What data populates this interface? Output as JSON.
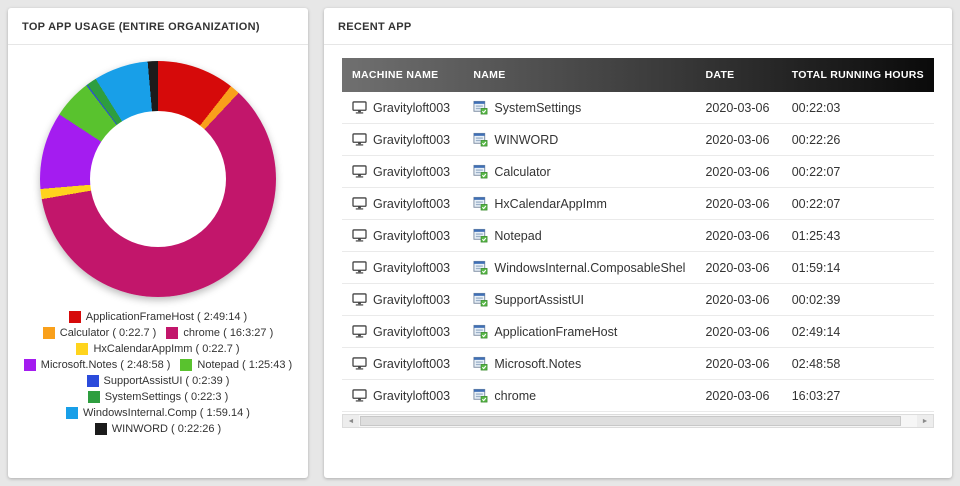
{
  "left_panel": {
    "title": "TOP APP USAGE (ENTIRE ORGANIZATION)"
  },
  "chart_data": {
    "type": "pie",
    "donut": true,
    "title": "TOP APP USAGE (ENTIRE ORGANIZATION)",
    "legend_position": "bottom",
    "start_angle_deg": 0,
    "slices": [
      {
        "label": "ApplicationFrameHost",
        "legend_text": "ApplicationFrameHost ( 2:49:14 )",
        "duration": "2:49:14",
        "hours": 2.8206,
        "color": "#d60a0a"
      },
      {
        "label": "Calculator",
        "legend_text": "Calculator ( 0:22.7 )",
        "duration": "0:22.7",
        "hours": 0.3686,
        "color": "#f9a01b"
      },
      {
        "label": "chrome",
        "legend_text": "chrome ( 16:3:27 )",
        "duration": "16:3:27",
        "hours": 16.0575,
        "color": "#c2166b"
      },
      {
        "label": "HxCalendarAppImm",
        "legend_text": "HxCalendarAppImm ( 0:22.7 )",
        "duration": "0:22.7",
        "hours": 0.3686,
        "color": "#ffd41d"
      },
      {
        "label": "Microsoft.Notes",
        "legend_text": "Microsoft.Notes ( 2:48:58 )",
        "duration": "2:48:58",
        "hours": 2.8161,
        "color": "#a41cf0"
      },
      {
        "label": "Notepad",
        "legend_text": "Notepad ( 1:25:43 )",
        "duration": "1:25:43",
        "hours": 1.4286,
        "color": "#59c22e"
      },
      {
        "label": "SupportAssistUI",
        "legend_text": "SupportAssistUI ( 0:2:39 )",
        "duration": "0:2:39",
        "hours": 0.0442,
        "color": "#2b4bdb"
      },
      {
        "label": "SystemSettings",
        "legend_text": "SystemSettings ( 0:22:3 )",
        "duration": "0:22:3",
        "hours": 0.3675,
        "color": "#2e9e3f"
      },
      {
        "label": "WindowsInternal.Comp",
        "legend_text": "WindowsInternal.Comp ( 1:59.14 )",
        "duration": "1:59.14",
        "hours": 1.9872,
        "color": "#189fe8"
      },
      {
        "label": "WINWORD",
        "legend_text": "WINWORD ( 0:22:26 )",
        "duration": "0:22:26",
        "hours": 0.3739,
        "color": "#1b1b1b"
      }
    ]
  },
  "right_panel": {
    "title": "RECENT APP",
    "table": {
      "columns": [
        "MACHINE NAME",
        "NAME",
        "DATE",
        "TOTAL RUNNING HOURS"
      ],
      "rows": [
        {
          "machine": "Gravityloft003",
          "name": "SystemSettings",
          "date": "2020-03-06",
          "hours": "00:22:03"
        },
        {
          "machine": "Gravityloft003",
          "name": "WINWORD",
          "date": "2020-03-06",
          "hours": "00:22:26"
        },
        {
          "machine": "Gravityloft003",
          "name": "Calculator",
          "date": "2020-03-06",
          "hours": "00:22:07"
        },
        {
          "machine": "Gravityloft003",
          "name": "HxCalendarAppImm",
          "date": "2020-03-06",
          "hours": "00:22:07"
        },
        {
          "machine": "Gravityloft003",
          "name": "Notepad",
          "date": "2020-03-06",
          "hours": "01:25:43"
        },
        {
          "machine": "Gravityloft003",
          "name": "WindowsInternal.ComposableShel",
          "date": "2020-03-06",
          "hours": "01:59:14"
        },
        {
          "machine": "Gravityloft003",
          "name": "SupportAssistUI",
          "date": "2020-03-06",
          "hours": "00:02:39"
        },
        {
          "machine": "Gravityloft003",
          "name": "ApplicationFrameHost",
          "date": "2020-03-06",
          "hours": "02:49:14"
        },
        {
          "machine": "Gravityloft003",
          "name": "Microsoft.Notes",
          "date": "2020-03-06",
          "hours": "02:48:58"
        },
        {
          "machine": "Gravityloft003",
          "name": "chrome",
          "date": "2020-03-06",
          "hours": "16:03:27"
        }
      ]
    }
  }
}
